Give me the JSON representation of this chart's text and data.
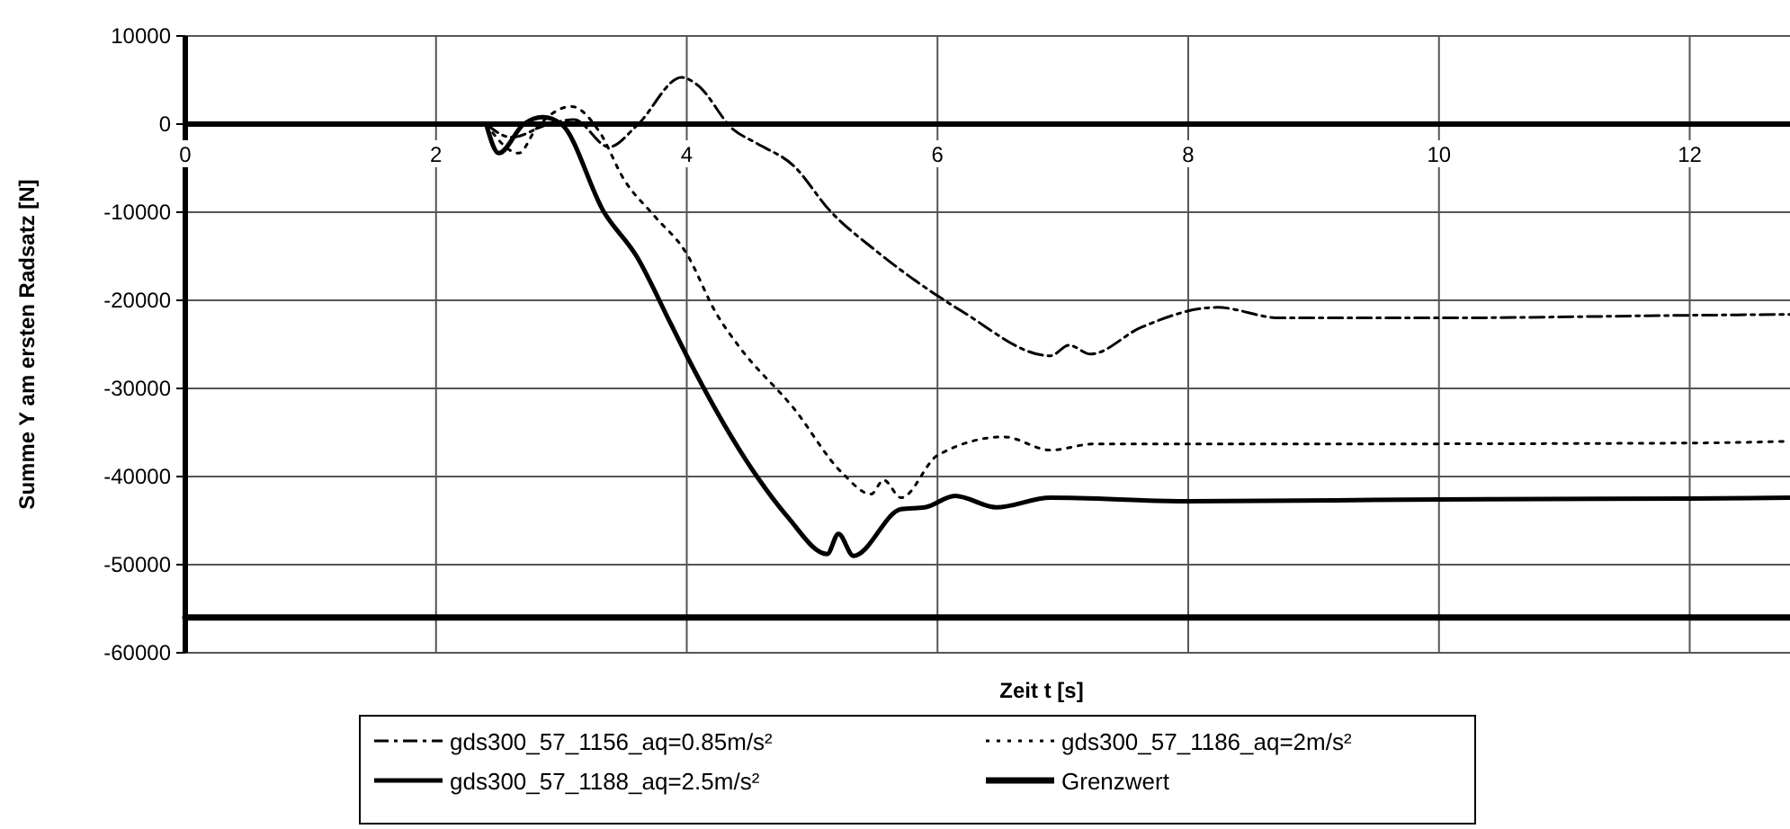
{
  "chart_data": {
    "type": "line",
    "xlabel": "Zeit t  [s]",
    "ylabel": "Summe Y am ersten Radsatz [N]",
    "xlim": [
      0,
      12.8
    ],
    "xticks": [
      0,
      2,
      4,
      6,
      8,
      10,
      12
    ],
    "ylim": [
      -60000,
      10000
    ],
    "yticks": [
      -60000,
      -50000,
      -40000,
      -30000,
      -20000,
      -10000,
      0,
      10000
    ],
    "grid": true,
    "legend": "bottom",
    "marker": "none",
    "series": [
      {
        "name": "gds300_57_1156_aq=0.85m/s²",
        "color": "#000000",
        "line_style": "dashdot",
        "x": [
          2.4,
          2.6,
          2.9,
          3.1,
          3.38,
          3.6,
          3.96,
          4.08,
          4.37,
          4.56,
          4.85,
          5.14,
          5.52,
          5.97,
          6.19,
          6.9,
          7.05,
          7.22,
          7.62,
          8.23,
          8.73,
          10,
          12,
          12.8
        ],
        "values": [
          0,
          -1500,
          0,
          500,
          -2600,
          -200,
          5300,
          4500,
          -600,
          -2200,
          -4700,
          -9800,
          -14500,
          -19200,
          -21200,
          -26300,
          -25100,
          -26100,
          -23100,
          -20800,
          -22000,
          -22000,
          -21700,
          -21600
        ]
      },
      {
        "name": "gds300_57_1186_aq=2m/s²",
        "color": "#000000",
        "line_style": "dotted",
        "x": [
          2.4,
          2.66,
          2.8,
          3.08,
          3.3,
          3.5,
          3.74,
          3.99,
          4.24,
          4.42,
          4.85,
          5.24,
          5.47,
          5.57,
          5.71,
          6.0,
          6.53,
          6.9,
          7.25,
          9,
          12,
          12.8
        ],
        "values": [
          0,
          -3300,
          -500,
          2000,
          -800,
          -6300,
          -10400,
          -14500,
          -21600,
          -25300,
          -32200,
          -39600,
          -42000,
          -40400,
          -42400,
          -37600,
          -35500,
          -37000,
          -36300,
          -36300,
          -36200,
          -36000
        ]
      },
      {
        "name": "gds300_57_1188_aq=2.5m/s²",
        "color": "#000000",
        "line_style": "solid",
        "x": [
          2.4,
          2.5,
          2.7,
          2.85,
          3.0,
          3.34,
          3.6,
          3.87,
          4.0,
          4.56,
          4.8,
          5.12,
          5.21,
          5.33,
          5.71,
          5.9,
          6.14,
          6.47,
          6.9,
          8,
          10,
          12,
          12.8
        ],
        "values": [
          0,
          -3300,
          0,
          800,
          0,
          -10000,
          -15000,
          -22600,
          -26300,
          -40000,
          -44500,
          -48800,
          -46500,
          -49000,
          -43700,
          -43500,
          -42200,
          -43500,
          -42400,
          -42800,
          -42600,
          -42500,
          -42400
        ]
      },
      {
        "name": "Grenzwert",
        "color": "#000000",
        "line_style": "solid",
        "x": [
          0,
          12.8
        ],
        "values": [
          -56000,
          -56000
        ]
      }
    ]
  }
}
